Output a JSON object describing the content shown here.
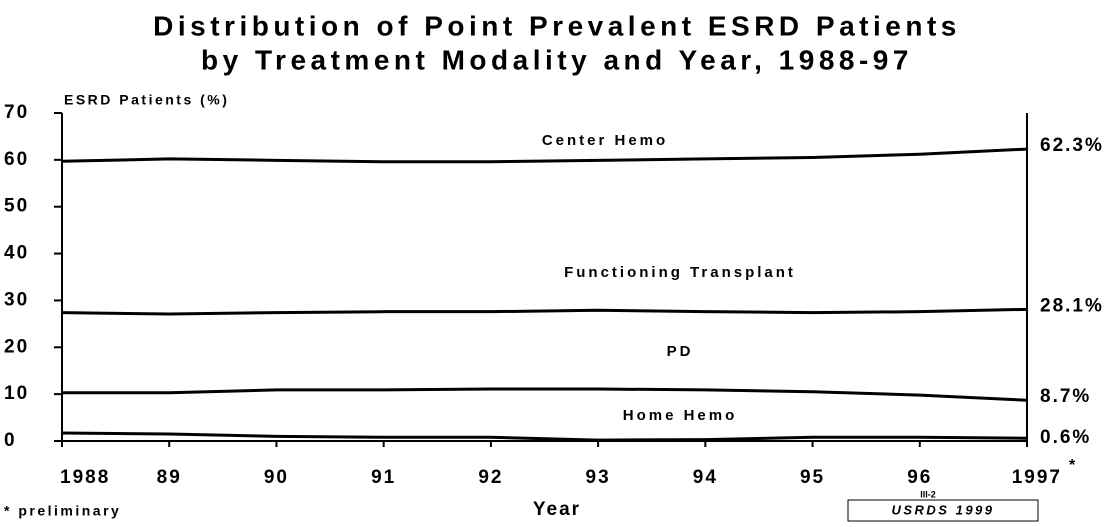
{
  "chart_data": {
    "type": "line",
    "title": [
      "Distribution of Point Prevalent ESRD Patients",
      "by Treatment Modality and Year, 1988-97"
    ],
    "y_label": "ESRD Patients (%)",
    "x_label": "Year",
    "note": "* preliminary",
    "x_annotation": "*",
    "page": "III-2",
    "source": "USRDS 1999",
    "categories": [
      "1988",
      "89",
      "90",
      "91",
      "92",
      "93",
      "94",
      "95",
      "96",
      "1997"
    ],
    "series": [
      {
        "name": "Center Hemo",
        "color": "#000000",
        "values": [
          59.7,
          60.2,
          59.9,
          59.6,
          59.6,
          59.9,
          60.2,
          60.5,
          61.2,
          62.3
        ],
        "end_label": "62.3%"
      },
      {
        "name": "Functioning Transplant",
        "color": "#000000",
        "values": [
          27.4,
          27.1,
          27.4,
          27.6,
          27.6,
          27.9,
          27.6,
          27.4,
          27.6,
          28.1
        ],
        "end_label": "28.1%"
      },
      {
        "name": "PD",
        "color": "#000000",
        "values": [
          10.3,
          10.3,
          10.9,
          10.9,
          11.1,
          11.1,
          10.9,
          10.5,
          9.8,
          8.7
        ],
        "end_label": "8.7%"
      },
      {
        "name": "Home Hemo",
        "color": "#000000",
        "values": [
          1.7,
          1.5,
          1.0,
          0.8,
          0.8,
          0.2,
          0.3,
          0.8,
          0.8,
          0.6
        ],
        "end_label": "0.6%"
      }
    ],
    "ylim": [
      0,
      70
    ],
    "yticks": [
      0,
      10,
      20,
      30,
      40,
      50,
      60,
      70
    ],
    "grid": false
  }
}
